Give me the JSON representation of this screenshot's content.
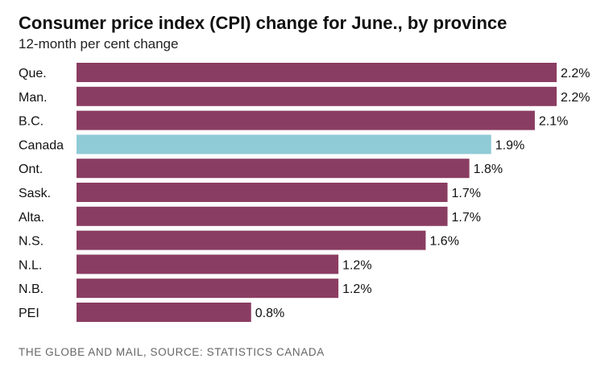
{
  "header": {
    "title": "Consumer price index (CPI) change for June., by province",
    "subtitle": "12-month per cent change"
  },
  "footer": {
    "source": "THE GLOBE AND MAIL, SOURCE: STATISTICS CANADA"
  },
  "colors": {
    "bar": "#8a3d62",
    "highlight": "#8fcbd6",
    "text": "#111111"
  },
  "chart_data": {
    "type": "bar",
    "orientation": "horizontal",
    "title": "Consumer price index (CPI) change for June., by province",
    "subtitle": "12-month per cent change",
    "categories": [
      "Que.",
      "Man.",
      "B.C.",
      "Canada",
      "Ont.",
      "Sask.",
      "Alta.",
      "N.S.",
      "N.L.",
      "N.B.",
      "PEI"
    ],
    "values": [
      2.2,
      2.2,
      2.1,
      1.9,
      1.8,
      1.7,
      1.7,
      1.6,
      1.2,
      1.2,
      0.8
    ],
    "value_labels": [
      "2.2%",
      "2.2%",
      "2.1%",
      "1.9%",
      "1.8%",
      "1.7%",
      "1.7%",
      "1.6%",
      "1.2%",
      "1.2%",
      "0.8%"
    ],
    "highlight_category": "Canada",
    "xlim": [
      0,
      2.2
    ],
    "grid": false,
    "legend": "none"
  }
}
